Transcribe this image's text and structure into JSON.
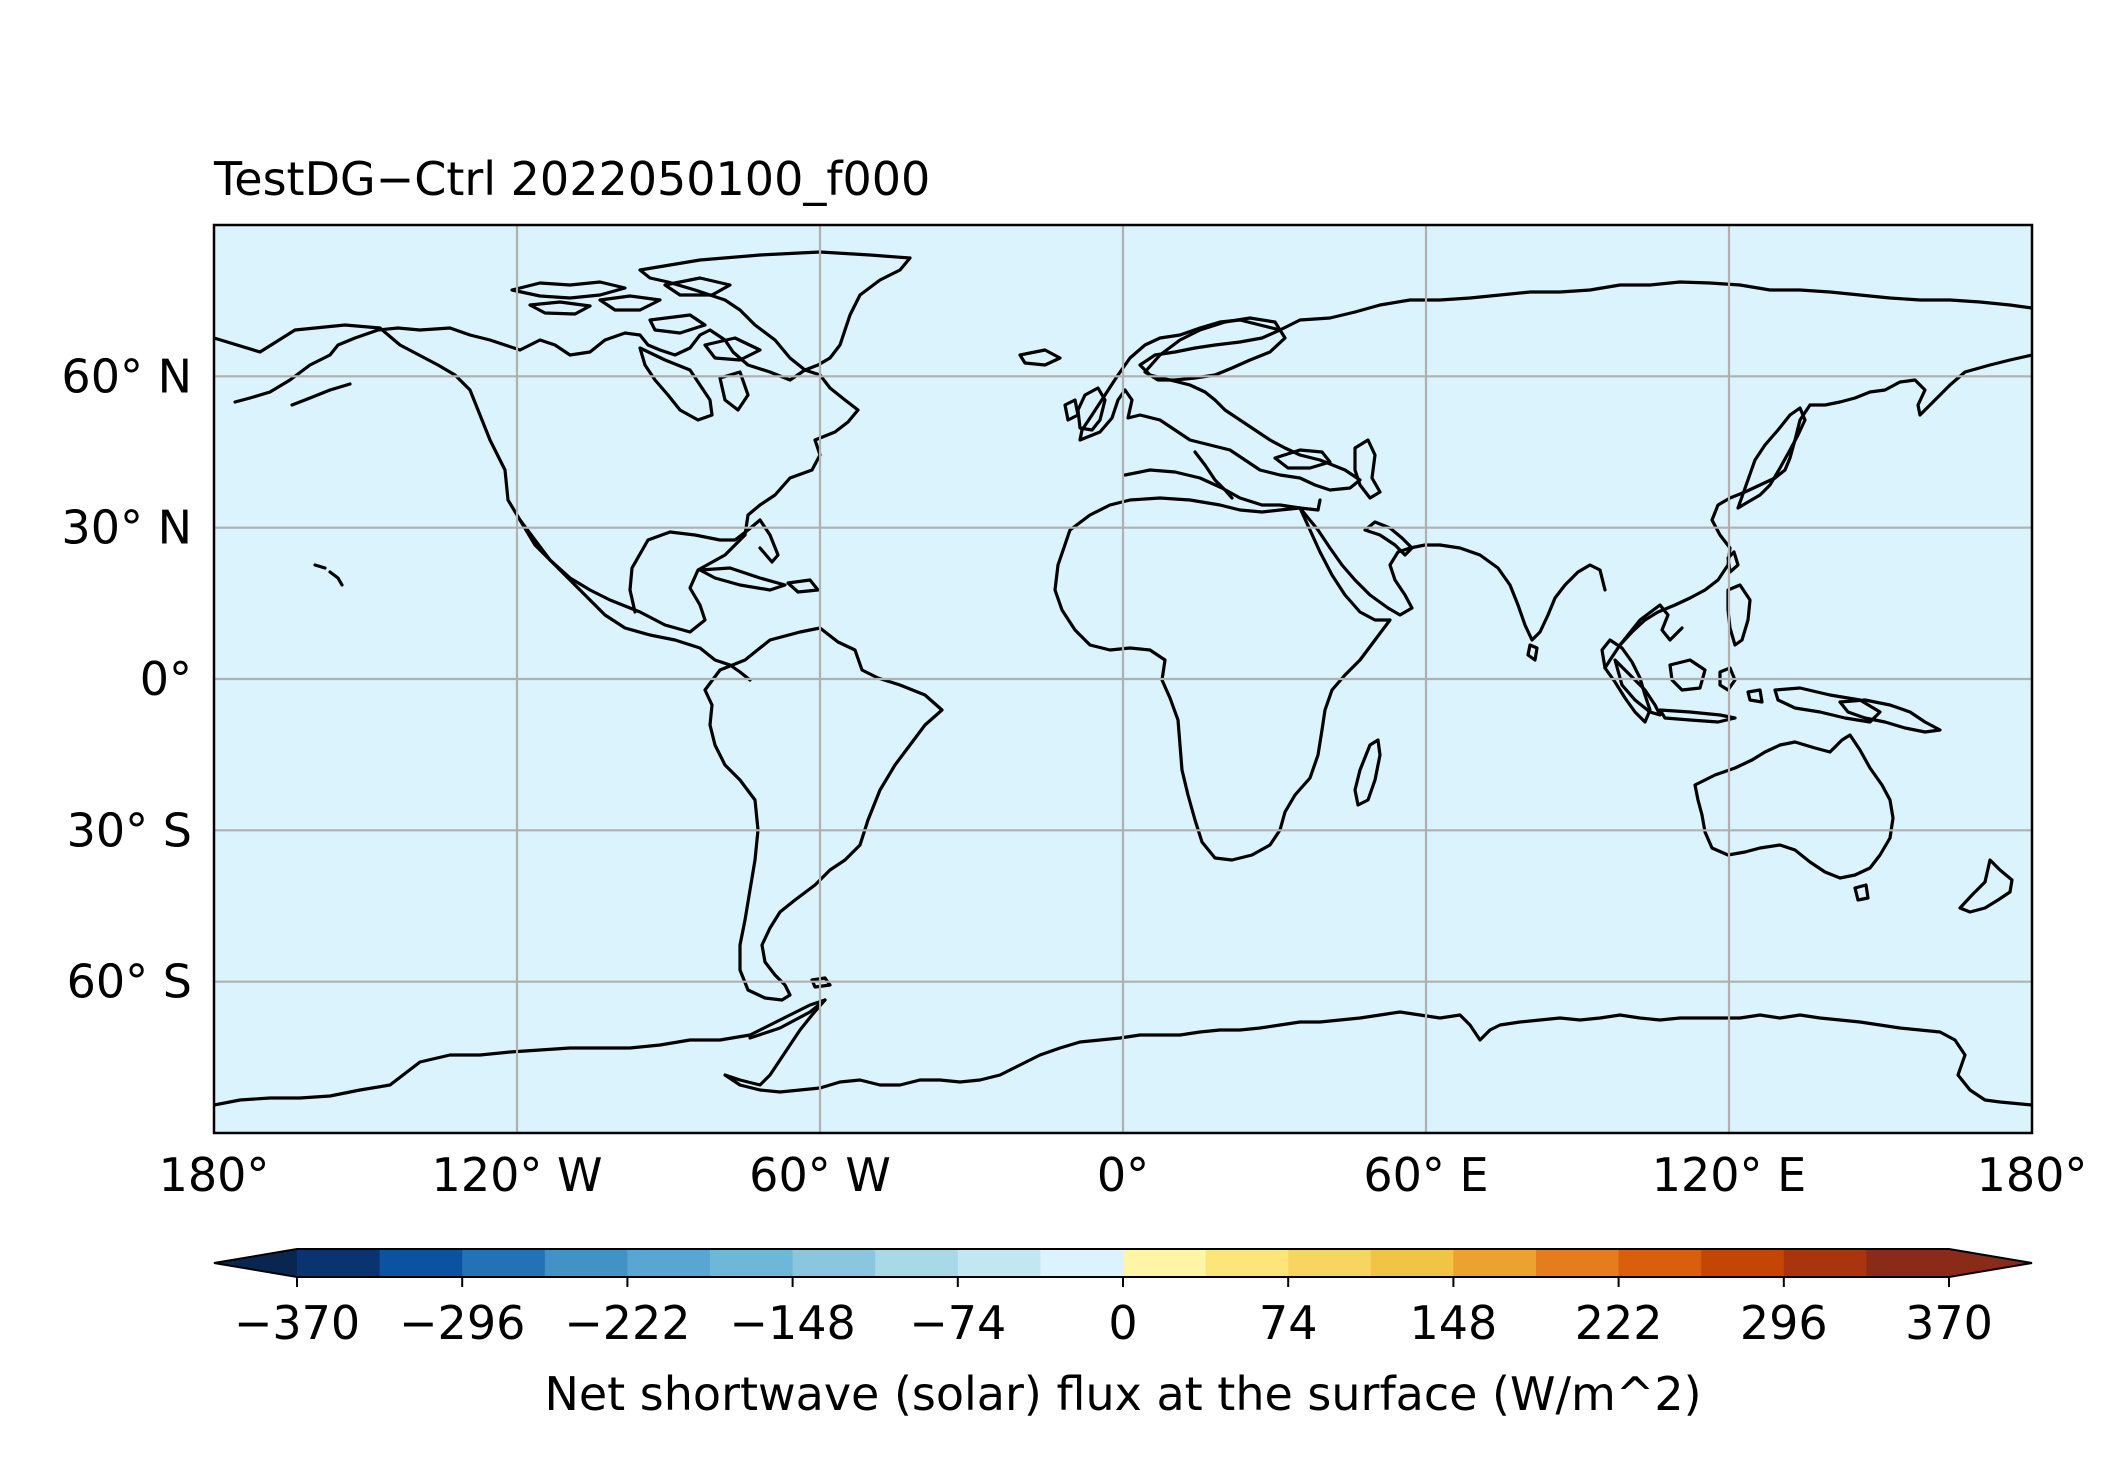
{
  "title": "TestDG−Ctrl 2022050100_f000",
  "map": {
    "projection": "PlateCarree",
    "ocean_color": "#dbf3fd",
    "coastline_color": "#000000",
    "gridline_color": "#b0b0b0",
    "field_value_everywhere": 0,
    "lon_ticks": [
      {
        "lon": -180,
        "label": "180°"
      },
      {
        "lon": -120,
        "label": "120° W"
      },
      {
        "lon": -60,
        "label": "60° W"
      },
      {
        "lon": 0,
        "label": "0°"
      },
      {
        "lon": 60,
        "label": "60° E"
      },
      {
        "lon": 120,
        "label": "120° E"
      },
      {
        "lon": 180,
        "label": "180°"
      }
    ],
    "lat_ticks": [
      {
        "lat": 60,
        "label": "60° N"
      },
      {
        "lat": 30,
        "label": "30° N"
      },
      {
        "lat": 0,
        "label": "0°"
      },
      {
        "lat": -30,
        "label": "30° S"
      },
      {
        "lat": -60,
        "label": "60° S"
      }
    ],
    "lon_range": [
      -180,
      180
    ],
    "lat_range": [
      -90,
      90
    ]
  },
  "colorbar": {
    "label": "Net shortwave (solar) flux at the surface (W/m^2)",
    "vmin": -370,
    "vmax": 370,
    "extend": "both",
    "tick_labels": [
      "−370",
      "−296",
      "−222",
      "−148",
      "−74",
      "0",
      "74",
      "148",
      "222",
      "296",
      "370"
    ],
    "tick_values": [
      -370,
      -296,
      -222,
      -148,
      -74,
      0,
      74,
      148,
      222,
      296,
      370
    ],
    "under_color": "#08264f",
    "over_color": "#8a2a19",
    "bins": [
      "#0a3470",
      "#0b52a0",
      "#2471b4",
      "#4292c6",
      "#5aa6d2",
      "#6db7d8",
      "#8ac7df",
      "#a7d9e7",
      "#c1e8f1",
      "#dbf3fd",
      "#fff5a6",
      "#fde57a",
      "#f8d461",
      "#f1c445",
      "#eba22e",
      "#e57c1e",
      "#d95f0e",
      "#c54504",
      "#a83510",
      "#8a2a19"
    ]
  }
}
